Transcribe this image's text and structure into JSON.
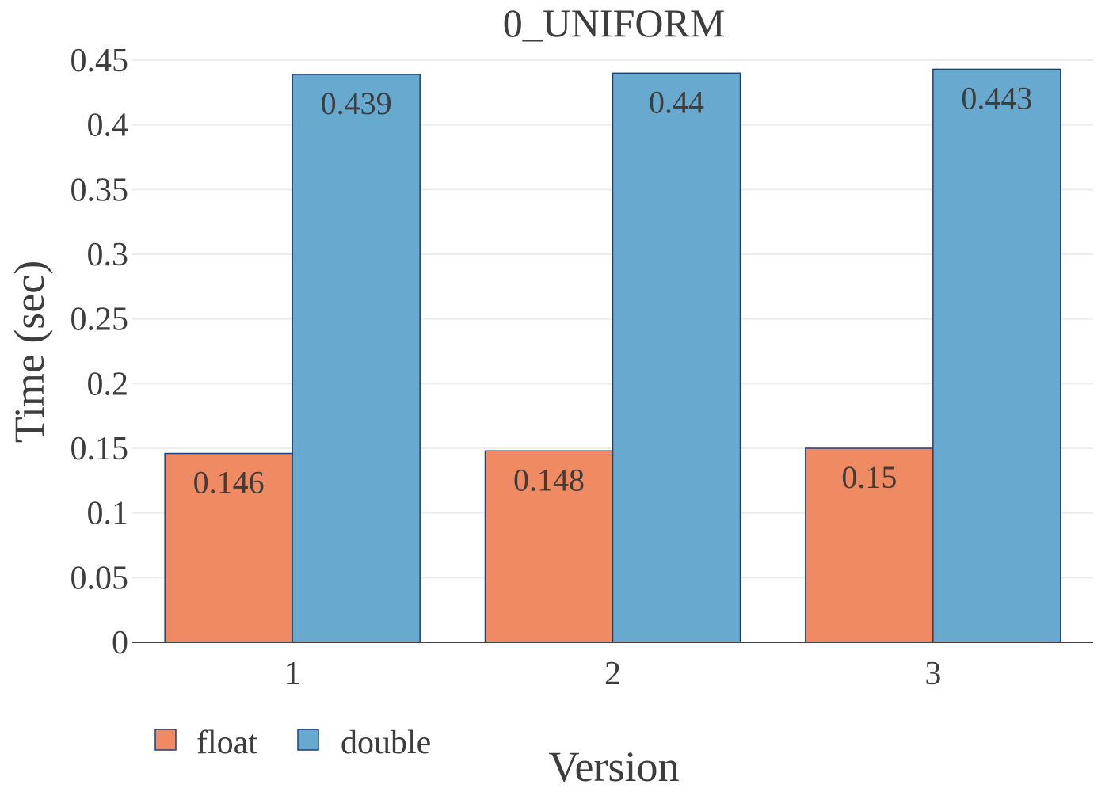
{
  "chart_data": {
    "type": "bar",
    "title": "0_UNIFORM",
    "xlabel": "Version",
    "ylabel": "Time (sec)",
    "categories": [
      "1",
      "2",
      "3"
    ],
    "series": [
      {
        "name": "float",
        "values": [
          0.146,
          0.148,
          0.15
        ],
        "color": "#ef8a62",
        "labels": [
          "0.146",
          "0.148",
          "0.15"
        ]
      },
      {
        "name": "double",
        "values": [
          0.439,
          0.44,
          0.443
        ],
        "color": "#67a9cf",
        "labels": [
          "0.439",
          "0.44",
          "0.443"
        ]
      }
    ],
    "ylim": [
      0,
      0.45
    ],
    "yticks": [
      0,
      0.05,
      0.1,
      0.15,
      0.2,
      0.25,
      0.3,
      0.35,
      0.4,
      0.45
    ],
    "ytick_labels": [
      "0",
      "0.05",
      "0.1",
      "0.15",
      "0.2",
      "0.25",
      "0.3",
      "0.35",
      "0.4",
      "0.45"
    ],
    "grid": true,
    "legend_position": "bottom-left",
    "bar_outline_color": "#1f3f7a"
  }
}
